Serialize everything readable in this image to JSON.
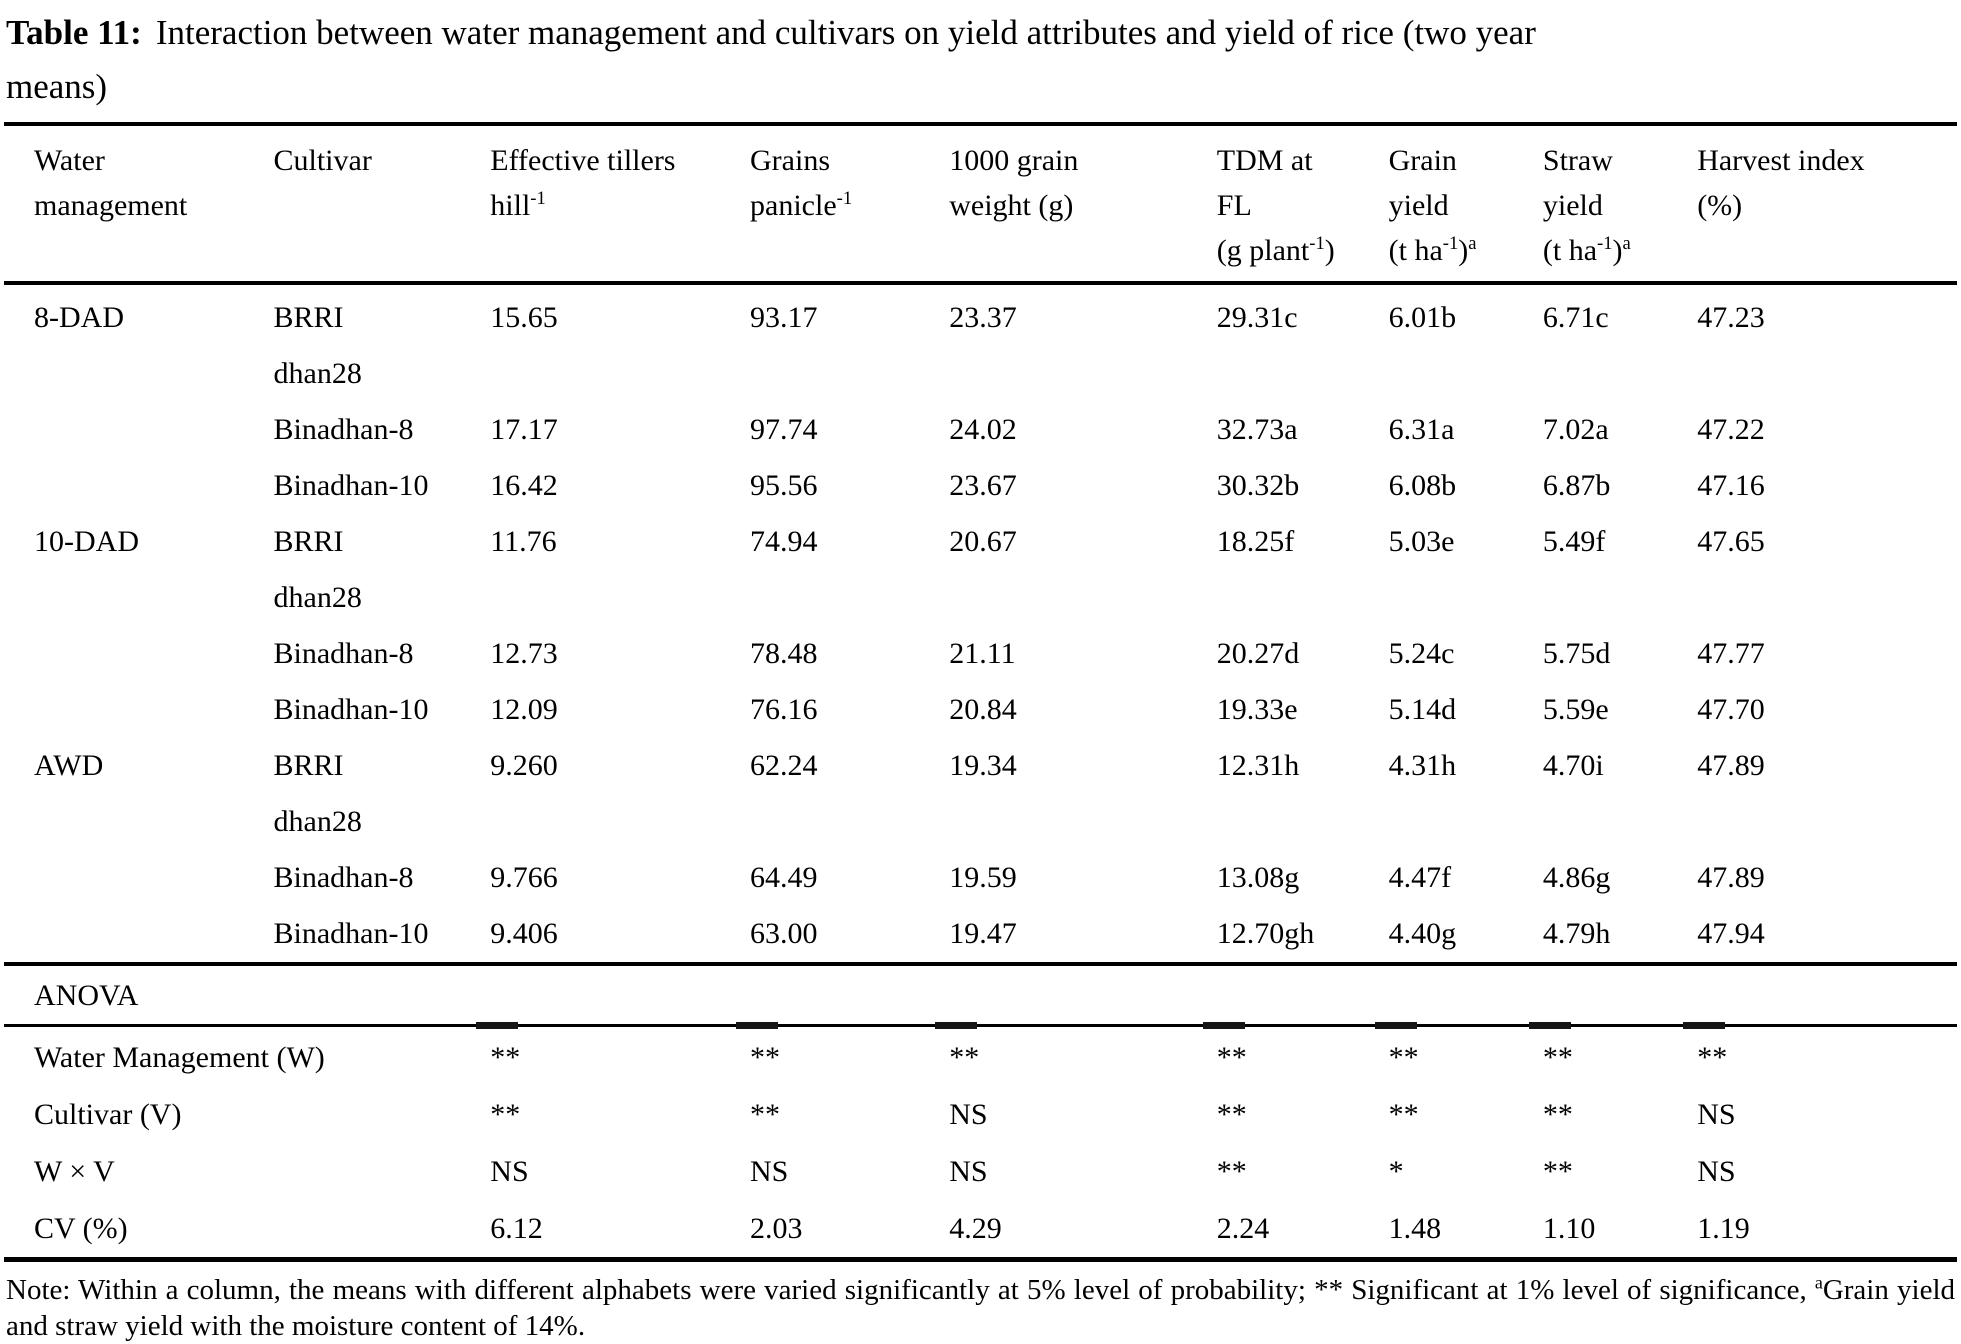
{
  "title": {
    "label": "Table 11:",
    "text": "Interaction between water management and cultivars on yield attributes and yield of rice (two year\nmeans)"
  },
  "table": {
    "columns": [
      [
        {
          "t": "Water\nmanagement"
        }
      ],
      [
        {
          "t": "Cultivar"
        }
      ],
      [
        {
          "t": "Effective tillers\nhill"
        },
        {
          "t": "-1",
          "sup": true
        }
      ],
      [
        {
          "t": "Grains\npanicle"
        },
        {
          "t": "-1",
          "sup": true
        }
      ],
      [
        {
          "t": "1000 grain\nweight (g)"
        }
      ],
      [
        {
          "t": "TDM at\nFL\n(g plant"
        },
        {
          "t": "-1",
          "sup": true
        },
        {
          "t": ")"
        }
      ],
      [
        {
          "t": "Grain\nyield\n(t ha"
        },
        {
          "t": "-1",
          "sup": true
        },
        {
          "t": ")"
        },
        {
          "t": "a",
          "sup": true
        }
      ],
      [
        {
          "t": "Straw\nyield\n(t ha"
        },
        {
          "t": "-1",
          "sup": true
        },
        {
          "t": ")"
        },
        {
          "t": "a",
          "sup": true
        }
      ],
      [
        {
          "t": "Harvest index\n(%)"
        }
      ]
    ],
    "body_rows": [
      {
        "water": "8-DAD",
        "cultivar": "BRRI\ndhan28",
        "values": [
          "15.65",
          "93.17",
          "23.37",
          "29.31c",
          "6.01b",
          "6.71c",
          "47.23"
        ]
      },
      {
        "water": "",
        "cultivar": "Binadhan-8",
        "values": [
          "17.17",
          "97.74",
          "24.02",
          "32.73a",
          "6.31a",
          "7.02a",
          "47.22"
        ]
      },
      {
        "water": "",
        "cultivar": "Binadhan-10",
        "values": [
          "16.42",
          "95.56",
          "23.67",
          "30.32b",
          "6.08b",
          "6.87b",
          "47.16"
        ]
      },
      {
        "water": "10-DAD",
        "cultivar": "BRRI\ndhan28",
        "values": [
          "11.76",
          "74.94",
          "20.67",
          "18.25f",
          "5.03e",
          "5.49f",
          "47.65"
        ]
      },
      {
        "water": "",
        "cultivar": "Binadhan-8",
        "values": [
          "12.73",
          "78.48",
          "21.11",
          "20.27d",
          "5.24c",
          "5.75d",
          "47.77"
        ]
      },
      {
        "water": "",
        "cultivar": "Binadhan-10",
        "values": [
          "12.09",
          "76.16",
          "20.84",
          "19.33e",
          "5.14d",
          "5.59e",
          "47.70"
        ]
      },
      {
        "water": "AWD",
        "cultivar": "BRRI\ndhan28",
        "values": [
          "9.260",
          "62.24",
          "19.34",
          "12.31h",
          "4.31h",
          "4.70i",
          "47.89"
        ]
      },
      {
        "water": "",
        "cultivar": "Binadhan-8",
        "values": [
          "9.766",
          "64.49",
          "19.59",
          "13.08g",
          "4.47f",
          "4.86g",
          "47.89"
        ]
      },
      {
        "water": "",
        "cultivar": "Binadhan-10",
        "values": [
          "9.406",
          "63.00",
          "19.47",
          "12.70gh",
          "4.40g",
          "4.79h",
          "47.94"
        ]
      }
    ],
    "anova": {
      "section_label": "ANOVA",
      "rows": [
        {
          "label": "Water Management (W)",
          "values": [
            "**",
            "**",
            "**",
            "**",
            "**",
            "**",
            "**"
          ]
        },
        {
          "label": "Cultivar (V)",
          "values": [
            "**",
            "**",
            "NS",
            "**",
            "**",
            "**",
            "NS"
          ]
        },
        {
          "label": "W × V",
          "values": [
            "NS",
            "NS",
            "NS",
            "**",
            "*",
            "**",
            "NS"
          ]
        },
        {
          "label": "CV (%)",
          "values": [
            "6.12",
            "2.03",
            "4.29",
            "2.24",
            "1.48",
            "1.10",
            "1.19"
          ]
        }
      ]
    }
  },
  "note": {
    "runs": [
      {
        "t": "Note: Within a column, the means with different alphabets were varied significantly at 5% level of probability; ** Significant at 1% level of significance, "
      },
      {
        "t": "a",
        "sup": true
      },
      {
        "t": "Grain yield and straw yield with the moisture content of 14%."
      }
    ]
  }
}
